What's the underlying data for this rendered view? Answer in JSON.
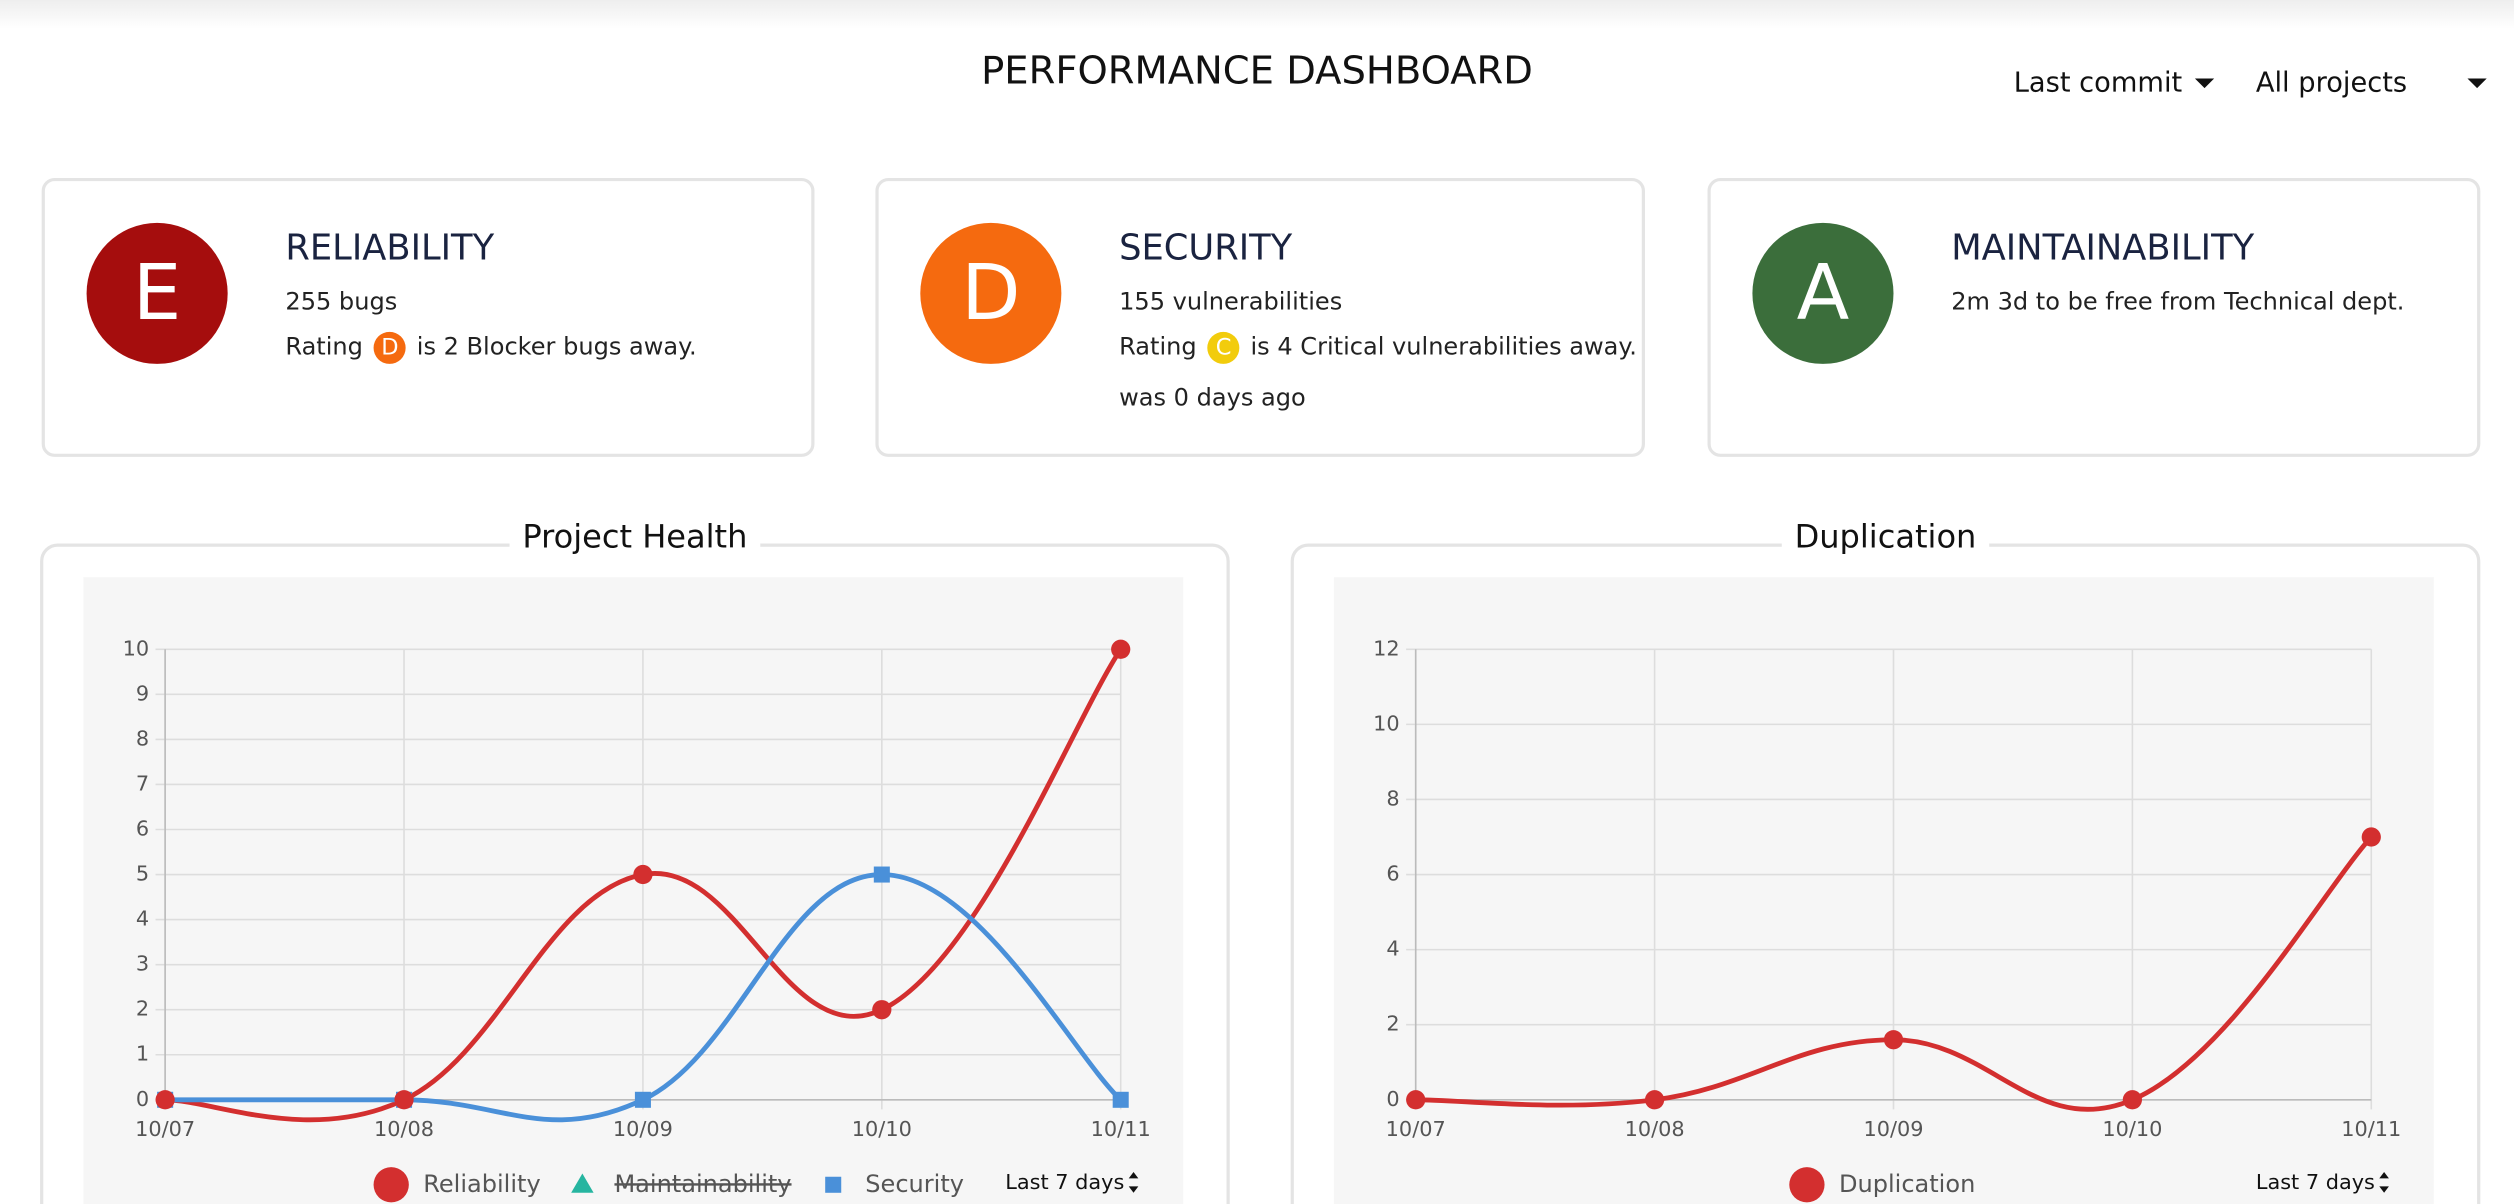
{
  "header": {
    "title": "PERFORMANCE DASHBOARD",
    "filters": [
      "Last commit",
      "All projects"
    ]
  },
  "cards": [
    {
      "grade": "E",
      "color": "#a50d0d",
      "title": "RELIABILITY",
      "lines": [
        "255 bugs"
      ],
      "rating": {
        "prefix": "Rating",
        "badge": "D",
        "badge_color": "#f56a0f",
        "suffix": "is 2 Blocker bugs away."
      },
      "extra": null
    },
    {
      "grade": "D",
      "color": "#f56a0f",
      "title": "SECURITY",
      "lines": [
        "155 vulnerabilities"
      ],
      "rating": {
        "prefix": "Rating",
        "badge": "C",
        "badge_color": "#f2cc0c",
        "suffix": "is 4 Critical vulnerabilities away."
      },
      "extra": "was 0 days ago"
    },
    {
      "grade": "A",
      "color": "#3b6e3b",
      "title": "MAINTAINABILITY",
      "lines": [
        "2m 3d to be free from Technical dept."
      ],
      "rating": null,
      "extra": null
    }
  ],
  "chart_data": [
    {
      "type": "line",
      "title": "Project Health",
      "categories": [
        "10/07",
        "10/08",
        "10/09",
        "10/10",
        "10/11"
      ],
      "series": [
        {
          "name": "Reliability",
          "color": "#d32f2f",
          "marker": "circle",
          "hidden": false,
          "values": [
            0,
            0,
            5,
            2,
            10
          ]
        },
        {
          "name": "Maintainability",
          "color": "#26b5a0",
          "marker": "triangle",
          "hidden": true,
          "values": [
            null,
            null,
            null,
            null,
            null
          ]
        },
        {
          "name": "Security",
          "color": "#4a90d9",
          "marker": "square",
          "hidden": false,
          "values": [
            0,
            0,
            0,
            5,
            0
          ]
        }
      ],
      "ylim": [
        0,
        10
      ],
      "yticks": [
        0,
        1,
        2,
        3,
        4,
        5,
        6,
        7,
        8,
        9,
        10
      ],
      "grid": true,
      "range_select": "Last 7 days"
    },
    {
      "type": "line",
      "title": "Duplication",
      "categories": [
        "10/07",
        "10/08",
        "10/09",
        "10/10",
        "10/11"
      ],
      "series": [
        {
          "name": "Duplication",
          "color": "#d32f2f",
          "marker": "circle",
          "hidden": false,
          "values": [
            0,
            0,
            1.6,
            0,
            7
          ]
        }
      ],
      "ylim": [
        0,
        12
      ],
      "yticks": [
        0,
        2,
        4,
        6,
        8,
        10,
        12
      ],
      "grid": true,
      "range_select": "Last 7 days"
    }
  ]
}
